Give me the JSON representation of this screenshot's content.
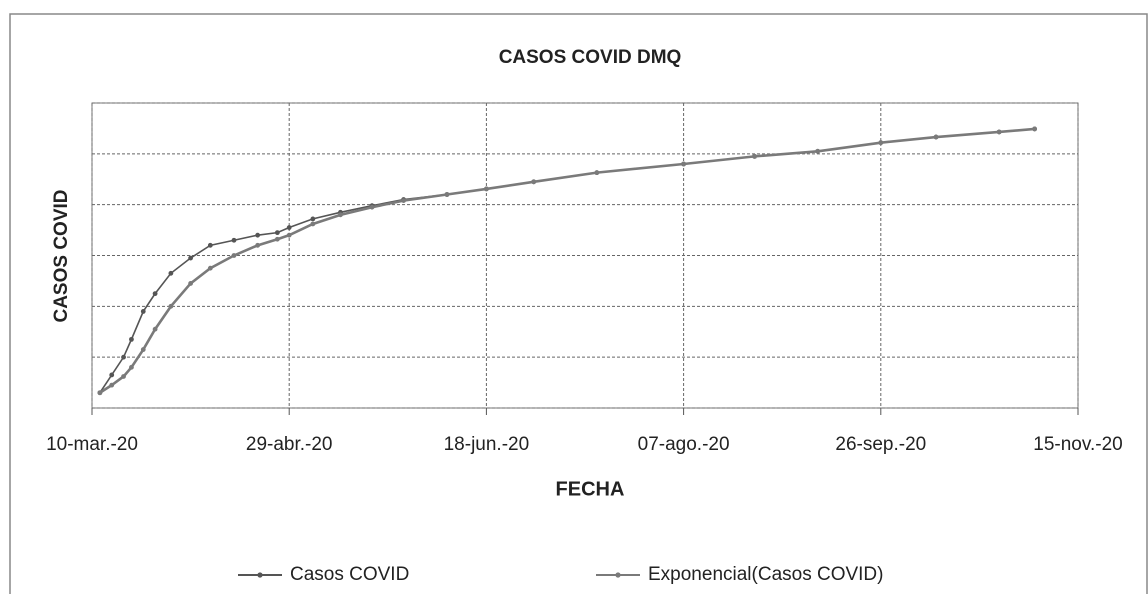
{
  "chart_data": {
    "type": "line",
    "title": "CASOS COVID DMQ",
    "x_label": "FECHA",
    "y_label": "CASOS COVID",
    "x": [
      "2020-03-12",
      "2020-03-15",
      "2020-03-18",
      "2020-03-20",
      "2020-03-23",
      "2020-03-26",
      "2020-03-30",
      "2020-04-04",
      "2020-04-09",
      "2020-04-15",
      "2020-04-21",
      "2020-04-26",
      "2020-04-29",
      "2020-05-05",
      "2020-05-12",
      "2020-05-20",
      "2020-05-28",
      "2020-06-08",
      "2020-06-18",
      "2020-06-30",
      "2020-07-16",
      "2020-08-07",
      "2020-08-25",
      "2020-09-10",
      "2020-09-26",
      "2020-10-10",
      "2020-10-26",
      "2020-11-04"
    ],
    "series": [
      {
        "name": "Casos COVID",
        "color": "#555555",
        "values": [
          0.3,
          0.65,
          1.0,
          1.35,
          1.9,
          2.25,
          2.65,
          2.95,
          3.2,
          3.3,
          3.4,
          3.45,
          3.55,
          3.72,
          3.85,
          3.98,
          4.1,
          4.2,
          4.31,
          4.45,
          4.63,
          4.8,
          4.95,
          5.05,
          5.22,
          5.33,
          5.43,
          5.49
        ]
      },
      {
        "name": "Exponencial(Casos COVID)",
        "color": "#7a7a7a",
        "values": [
          0.3,
          0.45,
          0.62,
          0.8,
          1.15,
          1.55,
          2.0,
          2.45,
          2.75,
          3.0,
          3.2,
          3.32,
          3.4,
          3.62,
          3.8,
          3.95,
          4.08,
          4.2,
          4.31,
          4.45,
          4.63,
          4.8,
          4.95,
          5.05,
          5.22,
          5.33,
          5.43,
          5.49
        ]
      }
    ],
    "xlim": [
      "2020-03-10",
      "2020-11-15"
    ],
    "xticks": [
      {
        "value": "2020-03-10",
        "label": "10-mar.-20"
      },
      {
        "value": "2020-04-29",
        "label": "29-abr.-20"
      },
      {
        "value": "2020-06-18",
        "label": "18-jun.-20"
      },
      {
        "value": "2020-08-07",
        "label": "07-ago.-20"
      },
      {
        "value": "2020-09-26",
        "label": "26-sep.-20"
      },
      {
        "value": "2020-11-15",
        "label": "15-nov.-20"
      }
    ],
    "ylim": [
      0,
      6
    ],
    "yticks": [
      0,
      1,
      2,
      3,
      4,
      5,
      6
    ],
    "grid": true,
    "legend": "bottom"
  }
}
